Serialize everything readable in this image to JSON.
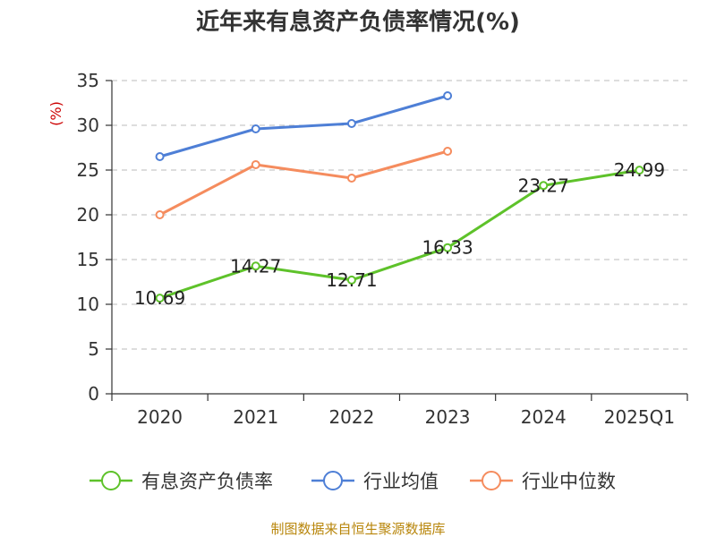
{
  "chart_data": {
    "type": "line",
    "title": "近年来有息资产负债率情况(%)",
    "ylabel": "(%)",
    "xlabel": "",
    "categories": [
      "2020",
      "2021",
      "2022",
      "2023",
      "2024",
      "2025Q1"
    ],
    "ylim": [
      0,
      35
    ],
    "yticks": [
      0,
      5,
      10,
      15,
      20,
      25,
      30,
      35
    ],
    "grid": true,
    "legend_position": "bottom",
    "series": [
      {
        "name": "有息资产负债率",
        "color": "#5ec22a",
        "values": [
          10.69,
          14.27,
          12.71,
          16.33,
          23.27,
          24.99
        ],
        "labels": [
          "10.69",
          "14.27",
          "12.71",
          "16.33",
          "23.27",
          "24.99"
        ],
        "show_labels": true
      },
      {
        "name": "行业均值",
        "color": "#4e7fd6",
        "values": [
          26.5,
          29.6,
          30.2,
          33.3,
          null,
          null
        ],
        "show_labels": false
      },
      {
        "name": "行业中位数",
        "color": "#f58c5e",
        "values": [
          20.0,
          25.6,
          24.1,
          27.1,
          null,
          null
        ],
        "show_labels": false
      }
    ],
    "source": "制图数据来自恒生聚源数据库",
    "ylabel_color": "#cc0000",
    "source_color": "#b8860b"
  }
}
